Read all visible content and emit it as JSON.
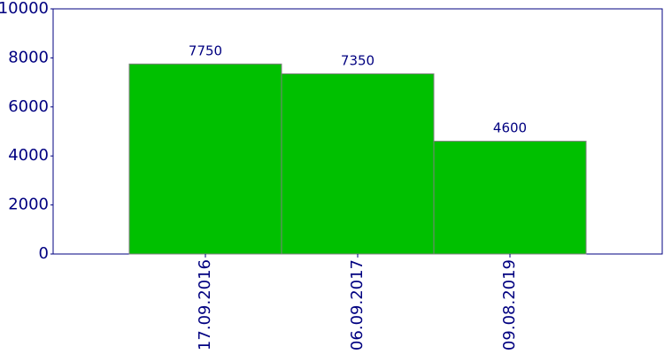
{
  "chart_data": {
    "type": "bar",
    "categories": [
      "17.09.2016",
      "06.09.2017",
      "09.08.2019"
    ],
    "values": [
      7750,
      7350,
      4600
    ],
    "color": "#00c000",
    "ylim": [
      0,
      10000
    ],
    "yticks": [
      0,
      2000,
      4000,
      6000,
      8000,
      10000
    ]
  }
}
